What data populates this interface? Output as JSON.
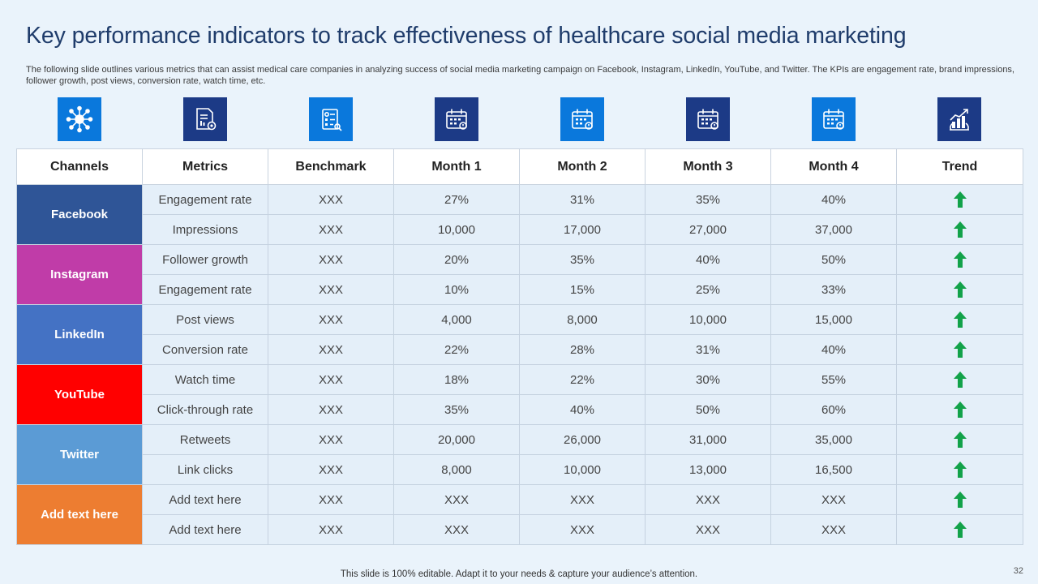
{
  "slide": {
    "title": "Key performance  indicators to track effectiveness of healthcare social media marketing",
    "subtitle": "The following slide outlines various metrics that can assist medical care companies in analyzing success of social media marketing campaign on Facebook, Instagram, LinkedIn, YouTube, and Twitter.  The KPIs are engagement rate, brand impressions, follower growth, post views, conversion rate, watch time, etc.",
    "footer": "This slide is 100% editable. Adapt it to your needs & capture your audience’s attention.",
    "page_number": "32"
  },
  "icons": [
    {
      "name": "network-icon",
      "bg": "#0a78dc"
    },
    {
      "name": "report-settings-icon",
      "bg": "#1c3a86"
    },
    {
      "name": "checklist-icon",
      "bg": "#0a78dc"
    },
    {
      "name": "calendar-icon",
      "bg": "#1c3a86"
    },
    {
      "name": "calendar-icon",
      "bg": "#0a78dc"
    },
    {
      "name": "calendar-icon",
      "bg": "#1c3a86"
    },
    {
      "name": "calendar-icon",
      "bg": "#0a78dc"
    },
    {
      "name": "trend-chart-icon",
      "bg": "#1c3a86"
    }
  ],
  "table": {
    "headers": [
      "Channels",
      "Metrics",
      "Benchmark",
      "Month 1",
      "Month 2",
      "Month 3",
      "Month 4",
      "Trend"
    ],
    "channels": [
      {
        "name": "Facebook",
        "color": "#2f5597",
        "rows": [
          {
            "metric": "Engagement rate",
            "benchmark": "XXX",
            "m1": "27%",
            "m2": "31%",
            "m3": "35%",
            "m4": "40%",
            "trend": "up-arrow-icon"
          },
          {
            "metric": "Impressions",
            "benchmark": "XXX",
            "m1": "10,000",
            "m2": "17,000",
            "m3": "27,000",
            "m4": "37,000",
            "trend": "up-arrow-icon"
          }
        ]
      },
      {
        "name": "Instagram",
        "color": "#c03ca8",
        "rows": [
          {
            "metric": "Follower growth",
            "benchmark": "XXX",
            "m1": "20%",
            "m2": "35%",
            "m3": "40%",
            "m4": "50%",
            "trend": "up-arrow-icon"
          },
          {
            "metric": "Engagement rate",
            "benchmark": "XXX",
            "m1": "10%",
            "m2": "15%",
            "m3": "25%",
            "m4": "33%",
            "trend": "up-arrow-icon"
          }
        ]
      },
      {
        "name": "LinkedIn",
        "color": "#4472c4",
        "rows": [
          {
            "metric": "Post views",
            "benchmark": "XXX",
            "m1": "4,000",
            "m2": "8,000",
            "m3": "10,000",
            "m4": "15,000",
            "trend": "up-arrow-icon"
          },
          {
            "metric": "Conversion rate",
            "benchmark": "XXX",
            "m1": "22%",
            "m2": "28%",
            "m3": "31%",
            "m4": "40%",
            "trend": "up-arrow-icon"
          }
        ]
      },
      {
        "name": "YouTube",
        "color": "#ff0000",
        "rows": [
          {
            "metric": "Watch time",
            "benchmark": "XXX",
            "m1": "18%",
            "m2": "22%",
            "m3": "30%",
            "m4": "55%",
            "trend": "up-arrow-icon"
          },
          {
            "metric": "Click-through rate",
            "benchmark": "XXX",
            "m1": "35%",
            "m2": "40%",
            "m3": "50%",
            "m4": "60%",
            "trend": "up-arrow-icon"
          }
        ]
      },
      {
        "name": "Twitter",
        "color": "#5b9bd5",
        "rows": [
          {
            "metric": "Retweets",
            "benchmark": "XXX",
            "m1": "20,000",
            "m2": "26,000",
            "m3": "31,000",
            "m4": "35,000",
            "trend": "up-arrow-icon"
          },
          {
            "metric": "Link clicks",
            "benchmark": "XXX",
            "m1": "8,000",
            "m2": "10,000",
            "m3": "13,000",
            "m4": "16,500",
            "trend": "up-arrow-icon"
          }
        ]
      },
      {
        "name": "Add text here",
        "color": "#ed7d31",
        "rows": [
          {
            "metric": "Add text here",
            "benchmark": "XXX",
            "m1": "XXX",
            "m2": "XXX",
            "m3": "XXX",
            "m4": "XXX",
            "trend": "up-arrow-icon"
          },
          {
            "metric": "Add text here",
            "benchmark": "XXX",
            "m1": "XXX",
            "m2": "XXX",
            "m3": "XXX",
            "m4": "XXX",
            "trend": "up-arrow-icon"
          }
        ]
      }
    ]
  },
  "colors": {
    "background": "#eaf3fb",
    "title": "#1f3c6b",
    "trend_up": "#12a24a"
  }
}
